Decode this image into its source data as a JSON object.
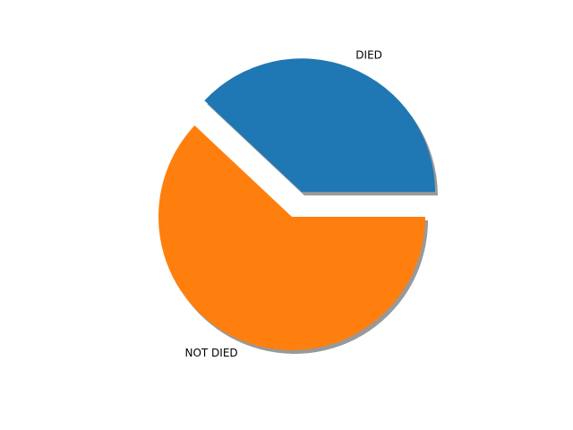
{
  "chart_data": {
    "type": "pie",
    "categories": [
      "DIED",
      "NOT DIED"
    ],
    "values": [
      38,
      62
    ],
    "explode": [
      0.2,
      0
    ],
    "shadow": true,
    "start_angle_deg": 0,
    "colors": [
      "#1f77b4",
      "#ff7f0e"
    ],
    "title": "",
    "legend": "none"
  }
}
